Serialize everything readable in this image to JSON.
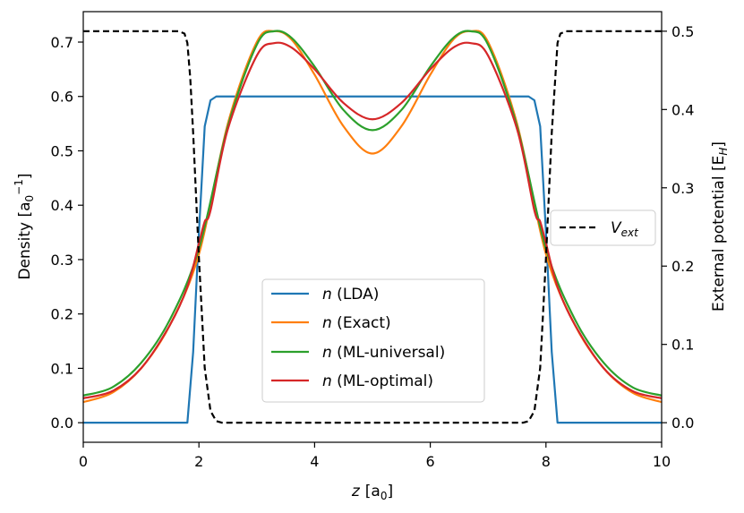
{
  "chart_data": {
    "type": "line",
    "title": "",
    "xlabel": {
      "var": "z",
      "unit": "[a",
      "sub": "0",
      "close": "]"
    },
    "ylabel": {
      "main": "Density [a",
      "sub": "0",
      "sup": "−1",
      "close": "]"
    },
    "y2label": {
      "main": "External potential [E",
      "sub": "H",
      "close": "]"
    },
    "xlim": [
      0,
      10
    ],
    "ylim": [
      -0.036,
      0.756
    ],
    "y2lim": [
      -0.025,
      0.525
    ],
    "xticks": [
      0,
      2,
      4,
      6,
      8,
      10
    ],
    "xtick_labels": [
      "0",
      "2",
      "4",
      "6",
      "8",
      "10"
    ],
    "yticks": [
      0.0,
      0.1,
      0.2,
      0.3,
      0.4,
      0.5,
      0.6,
      0.7
    ],
    "ytick_labels": [
      "0.0",
      "0.1",
      "0.2",
      "0.3",
      "0.4",
      "0.5",
      "0.6",
      "0.7"
    ],
    "y2ticks": [
      0.0,
      0.1,
      0.2,
      0.3,
      0.4,
      0.5
    ],
    "y2tick_labels": [
      "0.0",
      "0.1",
      "0.2",
      "0.3",
      "0.4",
      "0.5"
    ],
    "series": [
      {
        "id": "lda",
        "name": "n (LDA)",
        "var": "n",
        "label": " (LDA)",
        "color": "#1f77b4",
        "axis": "left",
        "x": [
          0,
          1.8,
          1.9,
          2.0,
          2.1,
          2.2,
          2.3,
          2.5,
          5.0,
          7.5,
          7.7,
          7.8,
          7.9,
          8.0,
          8.1,
          8.2,
          10
        ],
        "y": [
          0.0,
          0.0,
          0.13,
          0.35,
          0.545,
          0.593,
          0.6,
          0.6,
          0.6,
          0.6,
          0.6,
          0.593,
          0.545,
          0.35,
          0.13,
          0.0,
          0.0
        ]
      },
      {
        "id": "exact",
        "name": "n (Exact)",
        "var": "n",
        "label": " (Exact)",
        "color": "#ff7f0e",
        "axis": "left",
        "x": [
          0,
          0.5,
          1.0,
          1.5,
          2.0,
          2.5,
          3.0,
          3.3,
          3.6,
          4.0,
          4.5,
          5.0,
          5.5,
          6.0,
          6.4,
          6.7,
          7.0,
          7.5,
          8.0,
          8.5,
          9.0,
          9.5,
          10
        ],
        "y": [
          0.038,
          0.055,
          0.1,
          0.18,
          0.31,
          0.55,
          0.7,
          0.72,
          0.705,
          0.64,
          0.545,
          0.495,
          0.545,
          0.64,
          0.705,
          0.72,
          0.7,
          0.55,
          0.31,
          0.18,
          0.1,
          0.055,
          0.038
        ]
      },
      {
        "id": "ml-universal",
        "name": "n (ML-universal)",
        "var": "n",
        "label": " (ML-universal)",
        "color": "#2ca02c",
        "axis": "left",
        "x": [
          0,
          0.5,
          1.0,
          1.5,
          2.0,
          2.5,
          3.0,
          3.3,
          3.6,
          4.0,
          4.5,
          5.0,
          5.5,
          6.0,
          6.4,
          6.7,
          7.0,
          7.5,
          8.0,
          8.5,
          9.0,
          9.5,
          10
        ],
        "y": [
          0.05,
          0.065,
          0.11,
          0.19,
          0.32,
          0.545,
          0.695,
          0.72,
          0.708,
          0.655,
          0.575,
          0.538,
          0.575,
          0.655,
          0.708,
          0.72,
          0.695,
          0.545,
          0.32,
          0.19,
          0.11,
          0.065,
          0.05
        ]
      },
      {
        "id": "ml-optimal",
        "name": "n (ML-optimal)",
        "var": "n",
        "label": " (ML-optimal)",
        "color": "#d62728",
        "axis": "left",
        "x": [
          0,
          0.5,
          1.0,
          1.5,
          1.8,
          2.0,
          2.1,
          2.2,
          2.5,
          3.0,
          3.3,
          3.6,
          4.0,
          4.5,
          5.0,
          5.5,
          6.0,
          6.4,
          6.7,
          7.0,
          7.5,
          7.8,
          7.9,
          8.0,
          8.2,
          8.5,
          9.0,
          9.5,
          10
        ],
        "y": [
          0.045,
          0.058,
          0.1,
          0.18,
          0.25,
          0.33,
          0.37,
          0.39,
          0.54,
          0.675,
          0.698,
          0.69,
          0.65,
          0.588,
          0.558,
          0.588,
          0.65,
          0.69,
          0.698,
          0.675,
          0.54,
          0.39,
          0.37,
          0.33,
          0.25,
          0.18,
          0.1,
          0.058,
          0.045
        ]
      },
      {
        "id": "vext",
        "name": "V_ext",
        "var": "V",
        "sub": "ext",
        "color": "#000000",
        "axis": "right",
        "dashed": true,
        "x": [
          0,
          1.65,
          1.75,
          1.8,
          1.85,
          1.9,
          2.0,
          2.1,
          2.2,
          2.3,
          2.4,
          7.6,
          7.7,
          7.8,
          7.9,
          8.0,
          8.1,
          8.2,
          8.25,
          8.35,
          10
        ],
        "y": [
          0.5,
          0.5,
          0.497,
          0.485,
          0.44,
          0.37,
          0.21,
          0.07,
          0.015,
          0.002,
          0.0,
          0.0,
          0.002,
          0.015,
          0.07,
          0.21,
          0.37,
          0.485,
          0.497,
          0.5,
          0.5
        ]
      }
    ],
    "legends": [
      {
        "placement": "lower-center",
        "entries": [
          "lda",
          "exact",
          "ml-universal",
          "ml-optimal"
        ]
      },
      {
        "placement": "center-right",
        "entries": [
          "vext"
        ]
      }
    ]
  }
}
